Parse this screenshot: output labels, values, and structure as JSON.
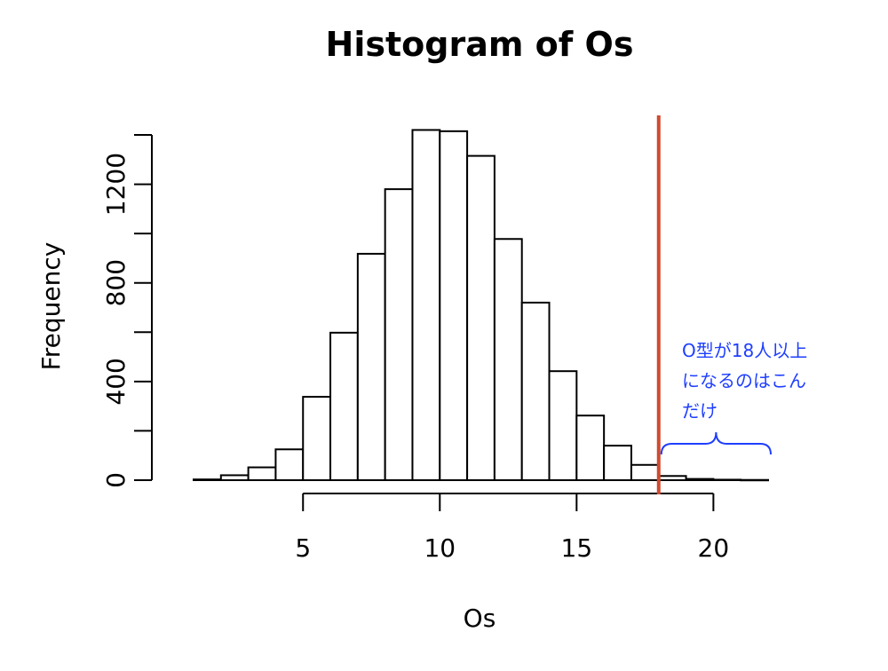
{
  "chart_data": {
    "type": "bar",
    "title": "Histogram of Os",
    "xlabel": "Os",
    "ylabel": "Frequency",
    "bins": [
      {
        "start": 1,
        "end": 2,
        "count": 3
      },
      {
        "start": 2,
        "end": 3,
        "count": 20
      },
      {
        "start": 3,
        "end": 4,
        "count": 52
      },
      {
        "start": 4,
        "end": 5,
        "count": 125
      },
      {
        "start": 5,
        "end": 6,
        "count": 338
      },
      {
        "start": 6,
        "end": 7,
        "count": 598
      },
      {
        "start": 7,
        "end": 8,
        "count": 918
      },
      {
        "start": 8,
        "end": 9,
        "count": 1180
      },
      {
        "start": 9,
        "end": 10,
        "count": 1420
      },
      {
        "start": 10,
        "end": 11,
        "count": 1415
      },
      {
        "start": 11,
        "end": 12,
        "count": 1315
      },
      {
        "start": 12,
        "end": 13,
        "count": 978
      },
      {
        "start": 13,
        "end": 14,
        "count": 720
      },
      {
        "start": 14,
        "end": 15,
        "count": 442
      },
      {
        "start": 15,
        "end": 16,
        "count": 262
      },
      {
        "start": 16,
        "end": 17,
        "count": 140
      },
      {
        "start": 17,
        "end": 18,
        "count": 62
      },
      {
        "start": 18,
        "end": 19,
        "count": 17
      },
      {
        "start": 19,
        "end": 20,
        "count": 5
      },
      {
        "start": 20,
        "end": 21,
        "count": 2
      },
      {
        "start": 21,
        "end": 22,
        "count": 1
      }
    ],
    "xticks": [
      5,
      10,
      15,
      20
    ],
    "yticks": [
      0,
      400,
      800,
      1200
    ],
    "xlim": [
      1,
      22
    ],
    "ylim": [
      0,
      1400
    ],
    "grid": false,
    "vline": {
      "x": 18,
      "color": "#d04a2f"
    },
    "annotation": {
      "lines": [
        "O型が18人以上",
        "になるのはこん",
        "だけ"
      ],
      "color": "#1f3fff",
      "brace_from_x": 18,
      "brace_to_x": 22
    }
  }
}
